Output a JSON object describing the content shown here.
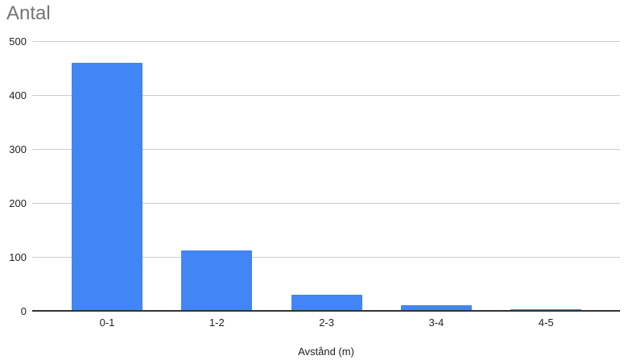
{
  "chart_data": {
    "type": "bar",
    "title": "Antal",
    "xlabel": "Avstånd (m)",
    "ylabel": "",
    "categories": [
      "0-1",
      "1-2",
      "2-3",
      "3-4",
      "4-5"
    ],
    "values": [
      460,
      112,
      30,
      10,
      3
    ],
    "ylim": [
      0,
      500
    ],
    "yticks": [
      0,
      100,
      200,
      300,
      400,
      500
    ],
    "grid": true,
    "legend": "none"
  },
  "colors": {
    "bar": "#4285f4",
    "title_text": "#757575",
    "axis_text": "#222222",
    "gridline": "#cccccc",
    "axis_line": "#333333",
    "background": "#ffffff"
  }
}
